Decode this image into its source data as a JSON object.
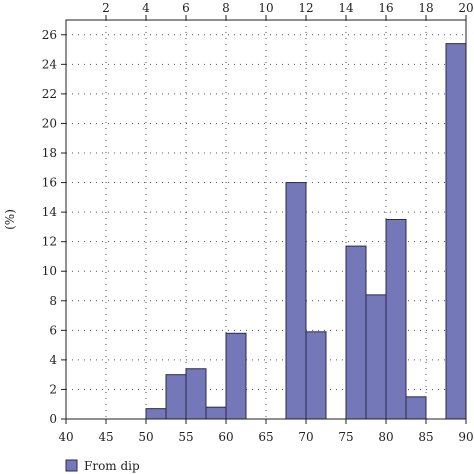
{
  "chart_data": {
    "type": "bar",
    "ylabel": "(%)",
    "xlim": [
      40,
      90
    ],
    "ylim": [
      0,
      27
    ],
    "x2lim": [
      0,
      20
    ],
    "x_ticks": [
      40,
      45,
      50,
      55,
      60,
      65,
      70,
      75,
      80,
      85,
      90
    ],
    "y_ticks": [
      0,
      2,
      4,
      6,
      8,
      10,
      12,
      14,
      16,
      18,
      20,
      22,
      24,
      26
    ],
    "x2_ticks": [
      2,
      4,
      6,
      8,
      10,
      12,
      14,
      16,
      18,
      20
    ],
    "grid": true,
    "legend_position": "bottom-left",
    "bar_color": "#7478b8",
    "series": [
      {
        "name": "From dip",
        "bars": [
          {
            "from": 50,
            "to": 52.5,
            "value": 0.7
          },
          {
            "from": 52.5,
            "to": 55,
            "value": 3.0
          },
          {
            "from": 55,
            "to": 57.5,
            "value": 3.4
          },
          {
            "from": 57.5,
            "to": 60,
            "value": 0.8
          },
          {
            "from": 60,
            "to": 62.5,
            "value": 5.8
          },
          {
            "from": 67.5,
            "to": 70,
            "value": 16.0
          },
          {
            "from": 70,
            "to": 72.5,
            "value": 5.9
          },
          {
            "from": 75,
            "to": 77.5,
            "value": 11.7
          },
          {
            "from": 77.5,
            "to": 80,
            "value": 8.4
          },
          {
            "from": 80,
            "to": 82.5,
            "value": 13.5
          },
          {
            "from": 82.5,
            "to": 85,
            "value": 1.5
          },
          {
            "from": 87.5,
            "to": 90,
            "value": 25.4
          }
        ]
      }
    ]
  }
}
